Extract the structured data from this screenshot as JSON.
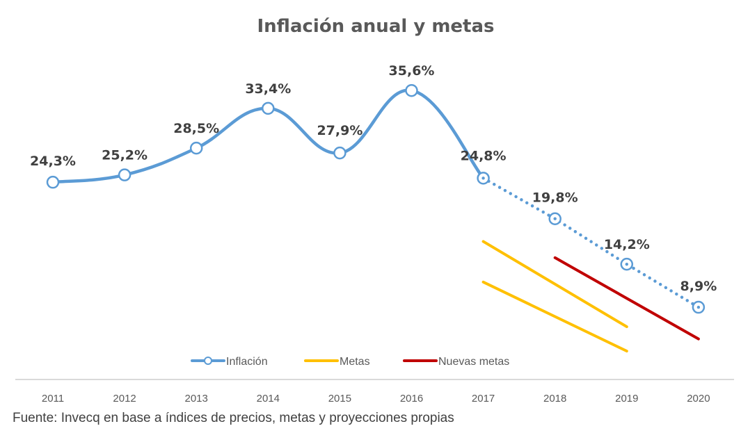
{
  "chart_data": {
    "type": "line",
    "title": "Inflación anual y metas",
    "xlabel": "",
    "ylabel": "",
    "categories": [
      "2011",
      "2012",
      "2013",
      "2014",
      "2015",
      "2016",
      "2017",
      "2018",
      "2019",
      "2020"
    ],
    "ylim": [
      0,
      40
    ],
    "grid": false,
    "legend_position": "bottom",
    "series": [
      {
        "name": "Inflación",
        "color": "#5B9BD5",
        "style": "solid-then-dotted",
        "projected_from": "2017",
        "values": [
          24.3,
          25.2,
          28.5,
          33.4,
          27.9,
          35.6,
          24.8,
          19.8,
          14.2,
          8.9
        ],
        "labels": [
          "24,3%",
          "25,2%",
          "28,5%",
          "33,4%",
          "27,9%",
          "35,6%",
          "24,8%",
          "19,8%",
          "14,2%",
          "8,9%"
        ]
      },
      {
        "name": "Metas",
        "color": "#FFC000",
        "lines": [
          {
            "part": "upper",
            "points": [
              [
                "2017",
                17.0
              ],
              [
                "2019",
                6.5
              ]
            ]
          },
          {
            "part": "lower",
            "points": [
              [
                "2017",
                12.0
              ],
              [
                "2019",
                3.5
              ]
            ]
          }
        ]
      },
      {
        "name": "Nuevas metas",
        "color": "#C00000",
        "lines": [
          {
            "part": "single",
            "points": [
              [
                "2018",
                15.0
              ],
              [
                "2020",
                5.0
              ]
            ]
          }
        ]
      }
    ]
  },
  "source": "Fuente: Invecq en base a índices de precios, metas y proyecciones propias"
}
